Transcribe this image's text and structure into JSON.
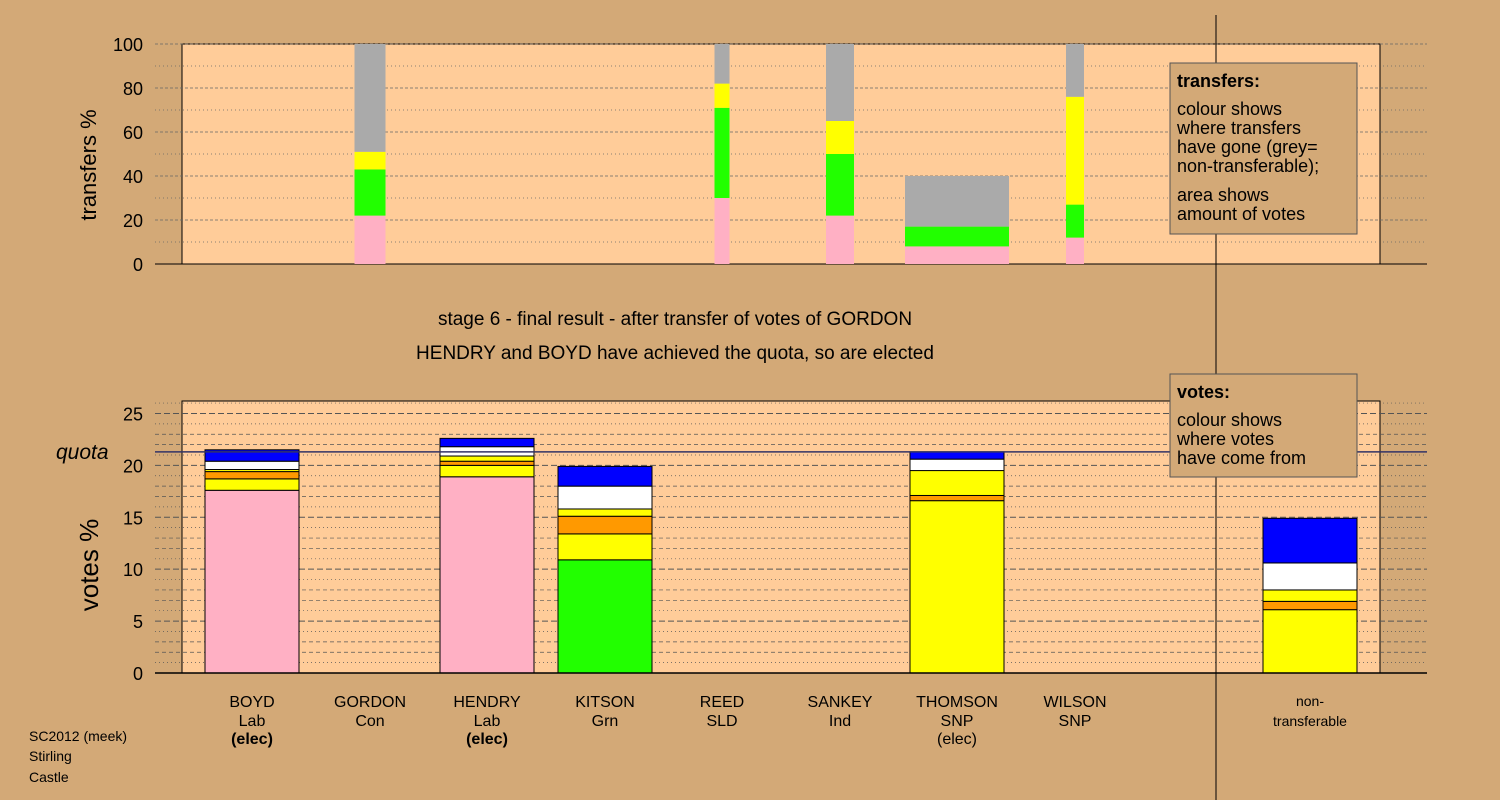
{
  "titles": {
    "stage": "stage 6 - final result - after transfer of votes of GORDON",
    "result": "HENDRY and BOYD have achieved the quota, so are elected"
  },
  "footer": {
    "lines": [
      "SC2012 (meek)",
      "Stirling",
      "Castle"
    ]
  },
  "legends": {
    "transfers": {
      "heading": "transfers:",
      "lines": [
        "colour shows",
        "where transfers",
        "have gone (grey=",
        "non-transferable);"
      ],
      "lines2": [
        "area shows",
        "amount of votes"
      ]
    },
    "votes": {
      "heading": "votes:",
      "lines": [
        "colour shows",
        "where votes",
        "have come from"
      ]
    }
  },
  "colors": {
    "background": "#d3a977",
    "plot": "#ffcc99",
    "lab": "#ffb0c4",
    "grn": "#22ff00",
    "snp": "#ffff00",
    "sld": "#ff9900",
    "ind": "#ffffff",
    "con": "#0000ff",
    "nontransferable": "#aaaaaa"
  },
  "columns": [
    {
      "name": "BOYD",
      "party": "Lab",
      "note": "(elec)",
      "note_bold": true
    },
    {
      "name": "GORDON",
      "party": "Con",
      "note": "",
      "note_bold": false
    },
    {
      "name": "HENDRY",
      "party": "Lab",
      "note": "(elec)",
      "note_bold": true
    },
    {
      "name": "KITSON",
      "party": "Grn",
      "note": "",
      "note_bold": false
    },
    {
      "name": "REED",
      "party": "SLD",
      "note": "",
      "note_bold": false
    },
    {
      "name": "SANKEY",
      "party": "Ind",
      "note": "",
      "note_bold": false
    },
    {
      "name": "THOMSON",
      "party": "SNP",
      "note": "(elec)",
      "note_bold": false
    },
    {
      "name": "WILSON",
      "party": "SNP",
      "note": "",
      "note_bold": false
    }
  ],
  "nontransferable_label": [
    "non-",
    "transferable"
  ],
  "chart_data": [
    {
      "type": "bar",
      "chart": "transfers",
      "ylabel": "transfers %",
      "ylim": [
        0,
        100
      ],
      "yticks": [
        0,
        20,
        40,
        60,
        80,
        100
      ],
      "grid": true,
      "legend": "top-right",
      "bars": [
        {
          "candidate": "GORDON",
          "segments": [
            {
              "party": "lab",
              "value": 22
            },
            {
              "party": "grn",
              "value": 21
            },
            {
              "party": "snp",
              "value": 8
            },
            {
              "party": "nontransferable",
              "value": 49
            }
          ]
        },
        {
          "candidate": "REED",
          "segments": [
            {
              "party": "lab",
              "value": 30
            },
            {
              "party": "grn",
              "value": 41
            },
            {
              "party": "snp",
              "value": 11
            },
            {
              "party": "nontransferable",
              "value": 18
            }
          ]
        },
        {
          "candidate": "SANKEY",
          "segments": [
            {
              "party": "lab",
              "value": 22
            },
            {
              "party": "grn",
              "value": 28
            },
            {
              "party": "snp",
              "value": 15
            },
            {
              "party": "nontransferable",
              "value": 35
            }
          ]
        },
        {
          "candidate": "THOMSON",
          "segments": [
            {
              "party": "lab",
              "value": 8
            },
            {
              "party": "grn",
              "value": 9
            },
            {
              "party": "nontransferable",
              "value": 23
            }
          ]
        },
        {
          "candidate": "WILSON",
          "segments": [
            {
              "party": "lab",
              "value": 12
            },
            {
              "party": "grn",
              "value": 15
            },
            {
              "party": "snp",
              "value": 49
            },
            {
              "party": "nontransferable",
              "value": 24
            }
          ]
        }
      ]
    },
    {
      "type": "bar",
      "chart": "votes",
      "ylabel": "votes %",
      "ylim": [
        0,
        25
      ],
      "yticks": [
        0,
        5,
        10,
        15,
        20,
        25
      ],
      "grid": true,
      "legend": "top-right",
      "quota": {
        "label": "quota",
        "value": 21.3
      },
      "bars": [
        {
          "candidate": "BOYD",
          "segments": [
            {
              "party": "lab",
              "value": 17.6
            },
            {
              "party": "snp",
              "value": 1.1
            },
            {
              "party": "sld",
              "value": 0.7
            },
            {
              "party": "snp",
              "value": 0.2
            },
            {
              "party": "ind",
              "value": 0.8
            },
            {
              "party": "con",
              "value": 1.1
            }
          ]
        },
        {
          "candidate": "HENDRY",
          "segments": [
            {
              "party": "lab",
              "value": 18.9
            },
            {
              "party": "snp",
              "value": 1.1
            },
            {
              "party": "sld",
              "value": 0.4
            },
            {
              "party": "snp",
              "value": 0.5
            },
            {
              "party": "ind",
              "value": 0.9
            },
            {
              "party": "con",
              "value": 0.8
            }
          ]
        },
        {
          "candidate": "KITSON",
          "segments": [
            {
              "party": "grn",
              "value": 10.9
            },
            {
              "party": "snp",
              "value": 2.5
            },
            {
              "party": "sld",
              "value": 1.7
            },
            {
              "party": "snp",
              "value": 0.7
            },
            {
              "party": "ind",
              "value": 2.2
            },
            {
              "party": "con",
              "value": 1.9
            }
          ]
        },
        {
          "candidate": "THOMSON",
          "segments": [
            {
              "party": "snp",
              "value": 16.6
            },
            {
              "party": "sld",
              "value": 0.5
            },
            {
              "party": "snp",
              "value": 2.4
            },
            {
              "party": "ind",
              "value": 1.1
            },
            {
              "party": "con",
              "value": 0.7
            }
          ]
        },
        {
          "candidate": "non-transferable",
          "segments": [
            {
              "party": "snp",
              "value": 6.1
            },
            {
              "party": "sld",
              "value": 0.8
            },
            {
              "party": "snp",
              "value": 1.1
            },
            {
              "party": "ind",
              "value": 2.6
            },
            {
              "party": "con",
              "value": 4.3
            }
          ]
        }
      ]
    }
  ]
}
